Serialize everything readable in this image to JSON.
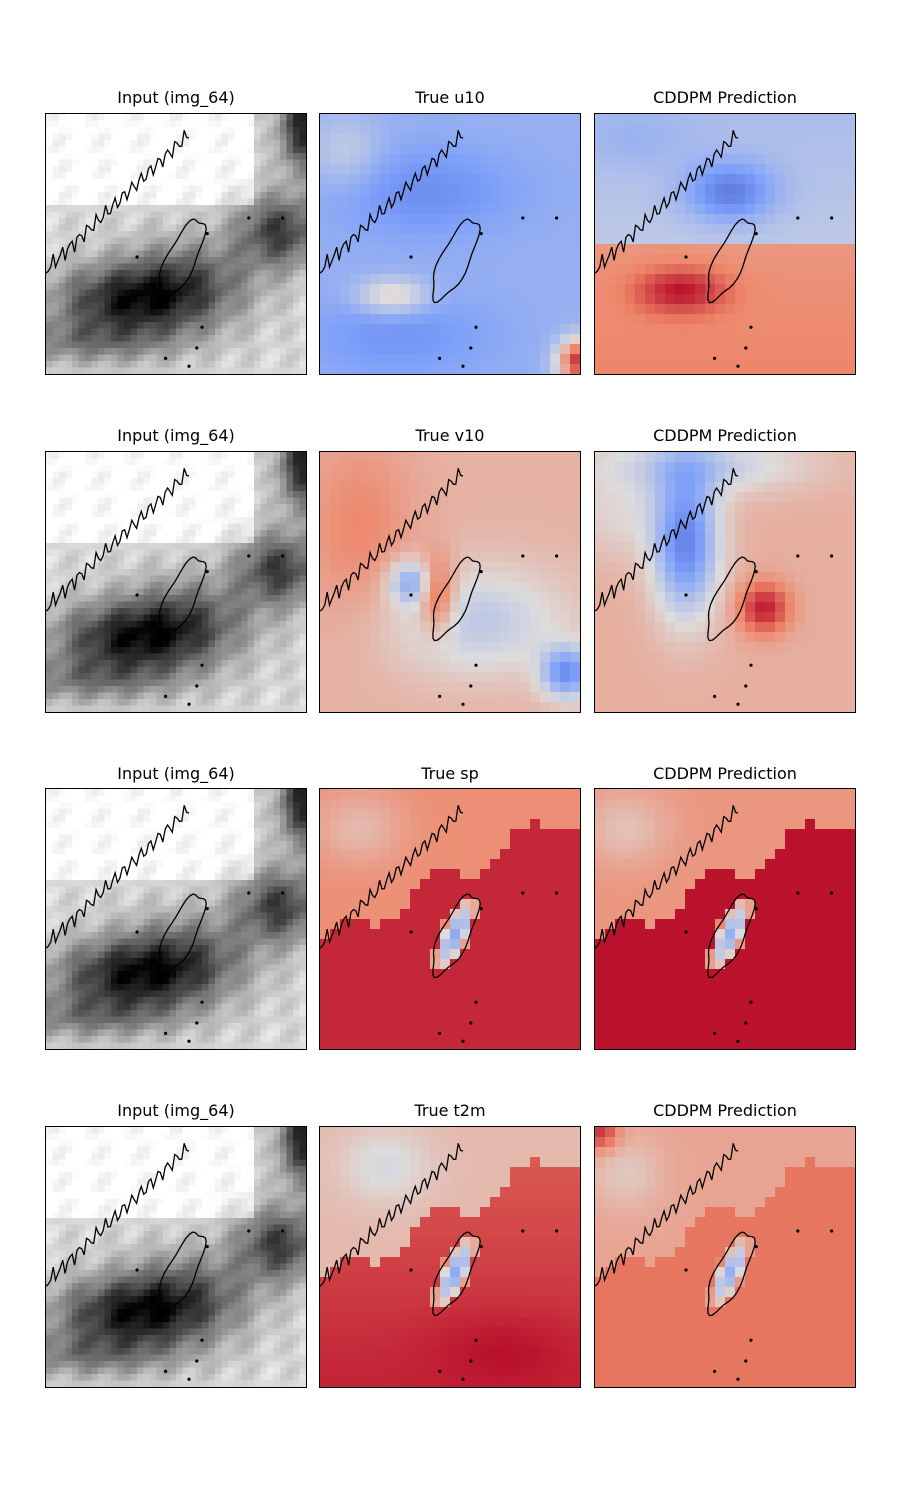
{
  "figure": {
    "rows": [
      {
        "panels": [
          {
            "title": "Input (img_64)",
            "kind": "satellite"
          },
          {
            "title": "True u10",
            "kind": "u10_true"
          },
          {
            "title": "CDDPM Prediction",
            "kind": "u10_pred"
          }
        ]
      },
      {
        "panels": [
          {
            "title": "Input (img_64)",
            "kind": "satellite"
          },
          {
            "title": "True v10",
            "kind": "v10_true"
          },
          {
            "title": "CDDPM Prediction",
            "kind": "v10_pred"
          }
        ]
      },
      {
        "panels": [
          {
            "title": "Input (img_64)",
            "kind": "satellite"
          },
          {
            "title": "True sp",
            "kind": "sp_true"
          },
          {
            "title": "CDDPM Prediction",
            "kind": "sp_pred"
          }
        ]
      },
      {
        "panels": [
          {
            "title": "Input (img_64)",
            "kind": "satellite"
          },
          {
            "title": "True t2m",
            "kind": "t2m_true"
          },
          {
            "title": "CDDPM Prediction",
            "kind": "t2m_pred"
          }
        ]
      }
    ],
    "colormaps": {
      "input": "gray_r",
      "fields": "coolwarm"
    },
    "colors": {
      "coast": "#000000",
      "warm_dark": "#b40426",
      "warm_mid": "#e8765c",
      "neutral": "#dddcdc",
      "cool_mid": "#7da0f9",
      "cool_dark": "#3b4cc0"
    }
  }
}
